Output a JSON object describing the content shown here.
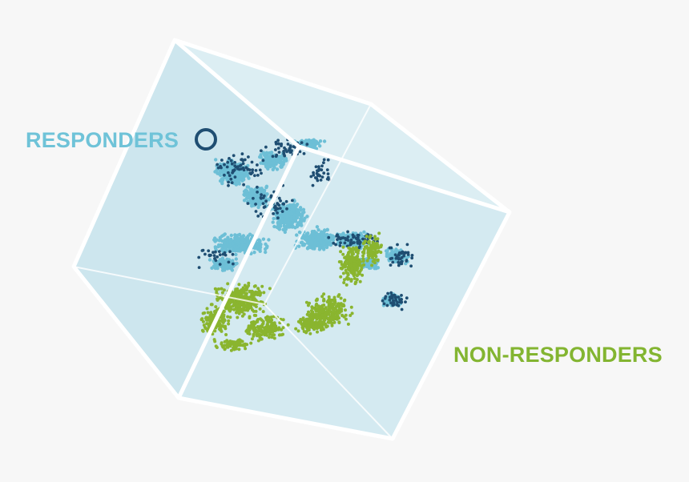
{
  "labels": {
    "responders": "RESPONDERS",
    "non_responders": "NON-RESPONDERS"
  },
  "colors": {
    "background": "#f7f7f7",
    "cube_fill": "#cde6ee",
    "cube_face_light": "#e3f1f5",
    "cube_edge": "#ffffff",
    "responders_light": "#6dbfd6",
    "responders_dark": "#1f4e72",
    "non_responders": "#8ab52f",
    "responders_label": "#6fc3d8",
    "non_responders_label": "#83b531",
    "marker_ring": "#1f4e72"
  },
  "icons": {
    "marker": "ring-marker-icon"
  }
}
